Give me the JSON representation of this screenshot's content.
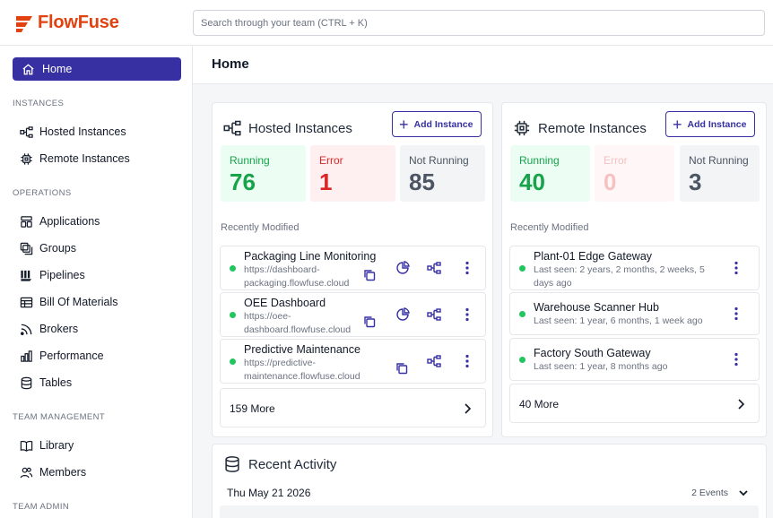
{
  "app": {
    "name": "FlowFuse",
    "brand_color": "#e2420f",
    "accent_color": "#3730a3"
  },
  "search": {
    "placeholder": "Search through your team (CTRL + K)"
  },
  "sidebar": {
    "home": "Home",
    "sections": {
      "instances": "INSTANCES",
      "operations": "OPERATIONS",
      "team_management": "TEAM MANAGEMENT",
      "team_admin": "TEAM ADMIN"
    },
    "items": {
      "hosted": "Hosted Instances",
      "remote": "Remote Instances",
      "applications": "Applications",
      "groups": "Groups",
      "pipelines": "Pipelines",
      "bom": "Bill Of Materials",
      "brokers": "Brokers",
      "performance": "Performance",
      "tables": "Tables",
      "library": "Library",
      "members": "Members"
    }
  },
  "page": {
    "title": "Home"
  },
  "hosted": {
    "title": "Hosted Instances",
    "add_label": "Add Instance",
    "stats": {
      "running_label": "Running",
      "running": "76",
      "error_label": "Error",
      "error": "1",
      "not_running_label": "Not Running",
      "not_running": "85"
    },
    "recent_label": "Recently Modified",
    "rows": [
      {
        "name": "Packaging Line Monitoring",
        "url_line1": "https://dashboard-",
        "url_line2": "packaging.flowfuse.cloud",
        "status": "running"
      },
      {
        "name": "OEE Dashboard",
        "url_line1": "https://oee-",
        "url_line2": "dashboard.flowfuse.cloud",
        "status": "running"
      },
      {
        "name": "Predictive Maintenance",
        "url_line1": "https://predictive-",
        "url_line2": "maintenance.flowfuse.cloud",
        "status": "running"
      }
    ],
    "more": "159 More"
  },
  "remote": {
    "title": "Remote Instances",
    "add_label": "Add Instance",
    "stats": {
      "running_label": "Running",
      "running": "40",
      "error_label": "Error",
      "error": "0",
      "not_running_label": "Not Running",
      "not_running": "3"
    },
    "recent_label": "Recently Modified",
    "rows": [
      {
        "name": "Plant-01 Edge Gateway",
        "seen_line1": "Last seen: 2 years, 2 months, 2 weeks, 5",
        "seen_line2": "days ago",
        "status": "running"
      },
      {
        "name": "Warehouse Scanner Hub",
        "seen_line1": "Last seen: 1 year, 6 months, 1 week ago",
        "status": "running"
      },
      {
        "name": "Factory South Gateway",
        "seen_line1": "Last seen: 1 year, 8 months ago",
        "status": "running"
      }
    ],
    "more": "40 More"
  },
  "activity": {
    "title": "Recent Activity",
    "date": "Thu May 21 2026",
    "events": "2 Events"
  }
}
